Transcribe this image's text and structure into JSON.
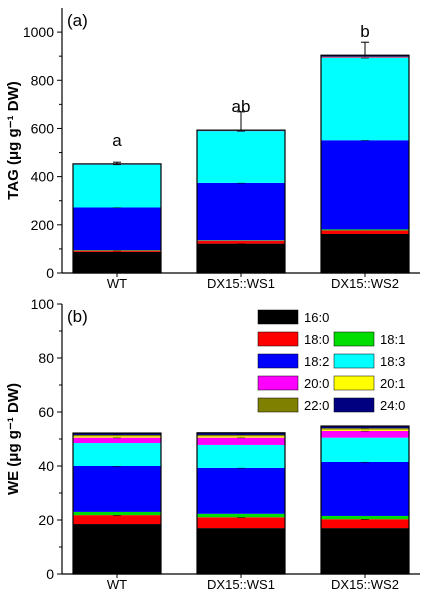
{
  "chart_data": [
    {
      "type": "bar",
      "stacked": true,
      "panel_label": "(a)",
      "ylabel": "TAG (μg g⁻¹ DW)",
      "ylim": [
        0,
        1100
      ],
      "yticks": [
        0,
        200,
        400,
        600,
        800,
        1000
      ],
      "categories": [
        "WT",
        "DX15::WS1",
        "DX15::WS2"
      ],
      "significance": [
        "a",
        "ab",
        "b"
      ],
      "series": [
        {
          "name": "16:0",
          "color": "#000000",
          "values": [
            88,
            122,
            162
          ],
          "error": [
            4,
            4,
            5
          ]
        },
        {
          "name": "18:0",
          "color": "#ff0000",
          "values": [
            5,
            12,
            15
          ]
        },
        {
          "name": "18:1",
          "color": "#00dd00",
          "values": [
            2,
            2,
            4
          ]
        },
        {
          "name": "18:2",
          "color": "#0000ff",
          "values": [
            177,
            238,
            370
          ],
          "error": [
            8,
            65,
            75
          ]
        },
        {
          "name": "18:3",
          "color": "#00ffff",
          "values": [
            178,
            215,
            342
          ],
          "error": [
            10,
            80,
            65
          ]
        },
        {
          "name": "20:0",
          "color": "#ff00ff",
          "values": [
            1,
            1,
            2
          ]
        },
        {
          "name": "20:1",
          "color": "#ffff00",
          "values": [
            0,
            0,
            0
          ]
        },
        {
          "name": "22:0",
          "color": "#808000",
          "values": [
            1,
            1,
            3
          ]
        },
        {
          "name": "24:0",
          "color": "#000080",
          "values": [
            1,
            2,
            6
          ]
        }
      ]
    },
    {
      "type": "bar",
      "stacked": true,
      "panel_label": "(b)",
      "ylabel": "WE (μg g⁻¹ DW)",
      "ylim": [
        0,
        100
      ],
      "yticks": [
        0,
        20,
        40,
        60,
        80,
        100
      ],
      "categories": [
        "WT",
        "DX15::WS1",
        "DX15::WS2"
      ],
      "series": [
        {
          "name": "16:0",
          "color": "#000000",
          "values": [
            18.5,
            17.0,
            17.0
          ]
        },
        {
          "name": "18:0",
          "color": "#ff0000",
          "values": [
            3.3,
            4.0,
            3.3
          ],
          "error": [
            0.5,
            0.5,
            1.0
          ]
        },
        {
          "name": "18:1",
          "color": "#00dd00",
          "values": [
            1.2,
            1.3,
            1.2
          ]
        },
        {
          "name": "18:2",
          "color": "#0000ff",
          "values": [
            17.0,
            17.0,
            20.0
          ],
          "error": [
            2.0,
            2.0,
            2.0
          ]
        },
        {
          "name": "18:3",
          "color": "#00ffff",
          "values": [
            8.5,
            8.5,
            9.0
          ]
        },
        {
          "name": "20:0",
          "color": "#ff00ff",
          "values": [
            2.0,
            2.7,
            2.5
          ],
          "error": [
            1.0,
            1.0,
            1.0
          ]
        },
        {
          "name": "20:1",
          "color": "#ffff00",
          "values": [
            0.5,
            0.5,
            0.5
          ]
        },
        {
          "name": "22:0",
          "color": "#808000",
          "values": [
            0.5,
            0.5,
            0.5
          ]
        },
        {
          "name": "24:0",
          "color": "#000080",
          "values": [
            0.7,
            0.8,
            0.8
          ]
        }
      ],
      "legend": {
        "position": "top-right",
        "entries": [
          "16:0",
          "18:0",
          "18:1",
          "18:2",
          "18:3",
          "20:0",
          "20:1",
          "22:0",
          "24:0"
        ]
      }
    }
  ]
}
